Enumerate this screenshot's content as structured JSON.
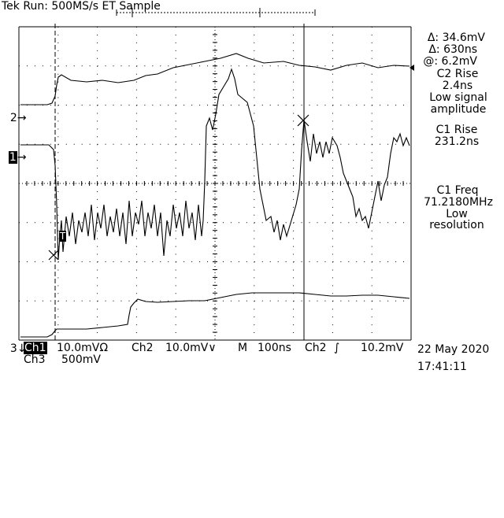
{
  "header": {
    "title": "Tek Run: 500MS/s ET Sample"
  },
  "cursor_readout": {
    "delta_v": "Δ: 34.6mV",
    "delta_t": "Δ: 630ns",
    "at_v": "@: 6.2mV"
  },
  "measurements": [
    {
      "name": "C2 Rise",
      "value": "2.4ns",
      "note1": "Low signal",
      "note2": "amplitude"
    },
    {
      "name": "C1 Rise",
      "value": "231.2ns"
    },
    {
      "name": "C1 Freq",
      "value": "71.2180MHz",
      "note1": "Low",
      "note2": "resolution"
    }
  ],
  "channel_markers": {
    "ch2": "2",
    "ch1": "1",
    "ch3": "3",
    "trigger": "T"
  },
  "bottom": {
    "ch1_label": "Ch1",
    "ch1_scale": "10.0mVΩ",
    "ch2_label": "Ch2",
    "ch2_scale": "10.0mV∨",
    "timebase_label": "M",
    "timebase": "100ns",
    "trigger_source": "Ch2",
    "trigger_slope": "∫",
    "trigger_level": "10.2mV",
    "ch3_label": "Ch3",
    "ch3_scale": "500mV",
    "date": "22 May 2020",
    "time": "17:41:11"
  },
  "colors": {
    "background": "#ffffff",
    "trace": "#000000",
    "graticule": "#000000"
  }
}
